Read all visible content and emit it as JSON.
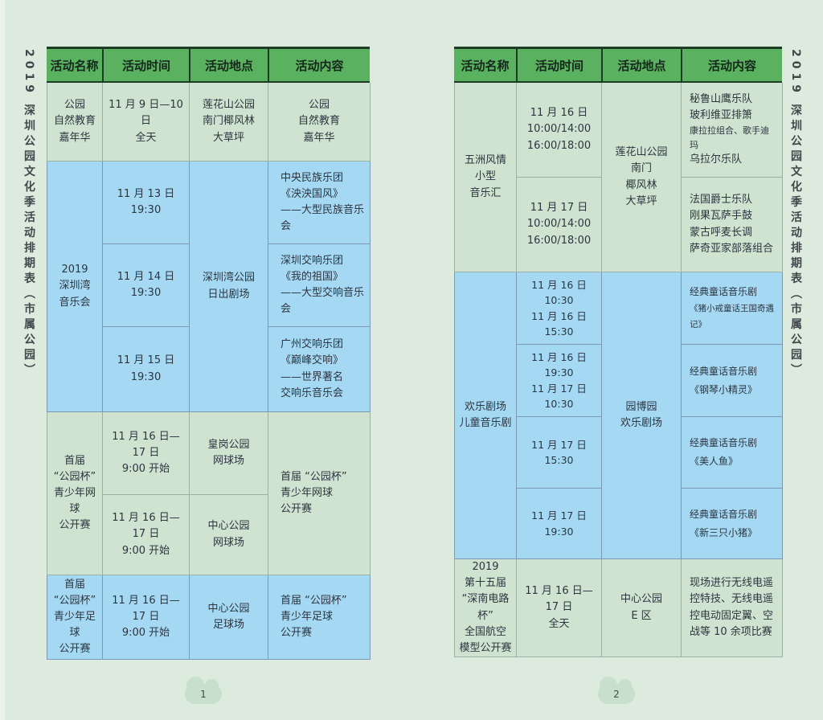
{
  "vertical_title": "2019 深圳公园文化季活动排期表（市属公园）",
  "colors": {
    "page_background": "#dcebdd",
    "header_green": "#5ab160",
    "header_line_dark": "#1e3b24",
    "cell_green": "#cfe3d0",
    "cell_blue": "#a5d9f3",
    "text": "#2d3540"
  },
  "header_columns": [
    "活动名称",
    "活动时间",
    "活动地点",
    "活动内容"
  ],
  "pages": [
    {
      "page_number": "1",
      "sections": [
        {
          "name": "公园\n自然教育\n嘉年华",
          "time": "11 月 9 日—10 日\n全天",
          "place": "莲花山公园\n南门椰风林\n大草坪",
          "content": "公园\n自然教育\n嘉年华"
        },
        {
          "name": "2019\n深圳湾\n音乐会",
          "place": "深圳湾公园\n日出剧场",
          "rows": [
            {
              "time": "11 月 13 日\n19:30",
              "content": "中央民族乐团\n《泱泱国风》\n——大型民族音乐会"
            },
            {
              "time": "11 月 14 日\n19:30",
              "content": "深圳交响乐团\n《我的祖国》\n——大型交响音乐会"
            },
            {
              "time": "11 月 15 日\n19:30",
              "content": "广州交响乐团\n《巅峰交响》\n——世界著名\n交响乐音乐会"
            }
          ]
        },
        {
          "name": "首届\n“公园杯”\n青少年网球\n公开赛",
          "content": "首届 “公园杯”\n青少年网球\n公开赛",
          "rows": [
            {
              "time": "11 月 16 日—17 日\n9:00 开始",
              "place": "皇岗公园\n网球场"
            },
            {
              "time": "11 月 16 日—17 日\n9:00 开始",
              "place": "中心公园\n网球场"
            }
          ]
        },
        {
          "name": "首届\n“公园杯”\n青少年足球\n公开赛",
          "time": "11 月 16 日—17 日\n9:00 开始",
          "place": "中心公园\n足球场",
          "content": "首届 “公园杯”\n青少年足球\n公开赛"
        }
      ]
    },
    {
      "page_number": "2",
      "sections": [
        {
          "name": "五洲风情\n小型\n音乐汇",
          "place": "莲花山公园\n南门\n椰风林\n大草坪",
          "rows": [
            {
              "time": "11 月 16 日\n10:00/14:00\n16:00/18:00",
              "content_a": "秘鲁山鹰乐队\n玻利维亚排箫",
              "content_small": "康拉拉组合、歌手迪玛",
              "content_b": "乌拉尔乐队"
            },
            {
              "time": "11 月 17 日\n10:00/14:00\n16:00/18:00",
              "content": "法国爵士乐队\n刚果瓦萨手鼓\n蒙古呼麦长调\n萨奇亚家部落组合"
            }
          ]
        },
        {
          "name": "欢乐剧场\n儿童音乐剧",
          "place": "园博园\n欢乐剧场",
          "rows": [
            {
              "time": "11 月 16 日 10:30\n11 月 16 日 15:30",
              "content_title": "经典童话音乐剧",
              "content_show": "《猪小戒童话王国奇遇记》"
            },
            {
              "time": "11 月 16 日 19:30\n11 月 17 日 10:30",
              "content_title": "经典童话音乐剧",
              "content_show": "《钢琴小精灵》"
            },
            {
              "time": "11 月 17 日 15:30",
              "content_title": "经典童话音乐剧",
              "content_show": "《美人鱼》"
            },
            {
              "time": "11 月 17 日 19:30",
              "content_title": "经典童话音乐剧",
              "content_show": "《新三只小猪》"
            }
          ]
        },
        {
          "name": "2019\n第十五届\n“深南电路杯”\n全国航空\n模型公开赛",
          "time": "11 月 16 日—17 日\n全天",
          "place": "中心公园\nE 区",
          "content": "现场进行无线电遥\n控特技、无线电遥\n控电动固定翼、空\n战等 10 余项比赛"
        }
      ]
    }
  ]
}
